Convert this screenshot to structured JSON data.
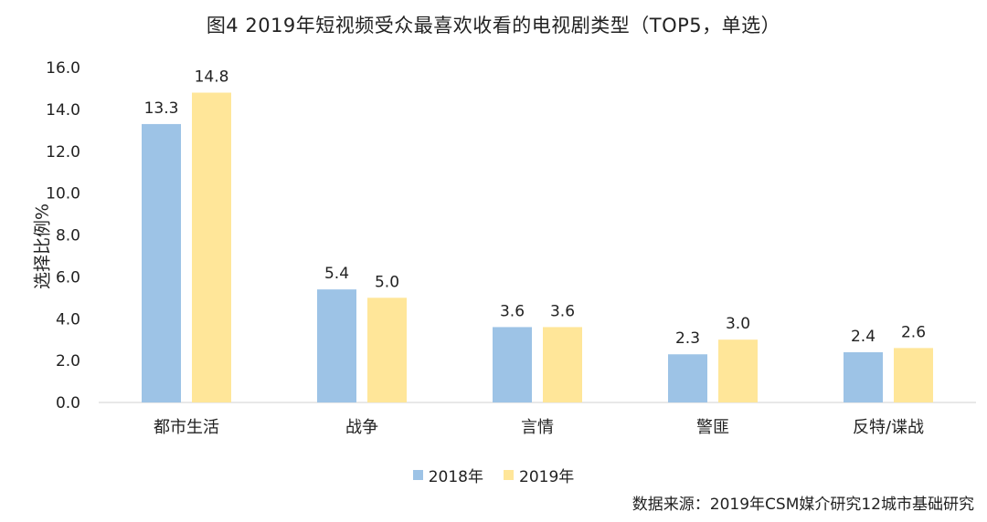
{
  "chart_data": {
    "type": "bar",
    "title": "图4  2019年短视频受众最喜欢收看的电视剧类型（TOP5，单选）",
    "xlabel": "",
    "ylabel": "选择比例%",
    "categories": [
      "都市生活",
      "战争",
      "言情",
      "警匪",
      "反特/谍战"
    ],
    "series": [
      {
        "name": "2018年",
        "color": "#9DC3E6",
        "values": [
          13.3,
          5.4,
          3.6,
          2.3,
          2.4
        ]
      },
      {
        "name": "2019年",
        "color": "#FFE699",
        "values": [
          14.8,
          5.0,
          3.6,
          3.0,
          2.6
        ]
      }
    ],
    "ylim": [
      0,
      16
    ],
    "yticks": [
      "0.0",
      "2.0",
      "4.0",
      "6.0",
      "8.0",
      "10.0",
      "12.0",
      "14.0",
      "16.0"
    ],
    "grid": false,
    "legend_position": "bottom",
    "source": "数据来源：2019年CSM媒介研究12城市基础研究"
  }
}
